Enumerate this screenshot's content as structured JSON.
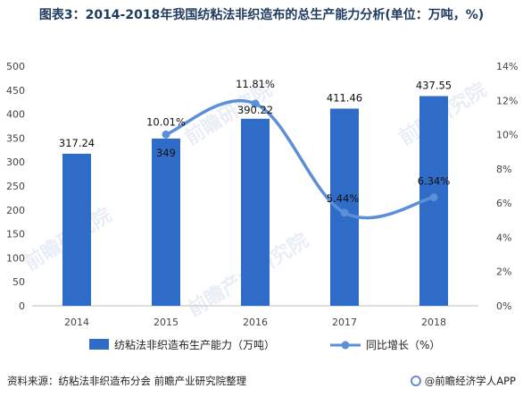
{
  "title": "图表3：2014-2018年我国纺粘法非织造布的总生产能力分析(单位：万吨，%)",
  "source": "资料来源：纺粘法非织造布分会 前瞻产业研究院整理",
  "brand": "@前瞻经济学人APP",
  "watermarks": [
    "前瞻研究院",
    "前瞻研究院",
    "前瞻产业研究院",
    "前瞻研究院"
  ],
  "chart_data": {
    "type": "bar+line",
    "categories": [
      "2014",
      "2015",
      "2016",
      "2017",
      "2018"
    ],
    "series": [
      {
        "name": "纺粘法非织造布生产能力（万吨）",
        "type": "bar",
        "axis": "left",
        "values": [
          317.24,
          349,
          390.22,
          411.46,
          437.55
        ],
        "labels": [
          "317.24",
          "349",
          "390.22",
          "411.46",
          "437.55"
        ],
        "color": "#2f6cc7"
      },
      {
        "name": "同比增长（%）",
        "type": "line",
        "axis": "right",
        "values": [
          null,
          10.01,
          11.81,
          5.44,
          6.34
        ],
        "labels": [
          "",
          "10.01%",
          "11.81%",
          "5.44%",
          "6.34%"
        ],
        "color": "#5b8fd8"
      }
    ],
    "y_left": {
      "min": 0,
      "max": 500,
      "ticks": [
        "0",
        "50",
        "100",
        "150",
        "200",
        "250",
        "300",
        "350",
        "400",
        "450",
        "500"
      ]
    },
    "y_right": {
      "min": 0,
      "max": 14,
      "ticks": [
        "0%",
        "2%",
        "4%",
        "6%",
        "8%",
        "10%",
        "12%",
        "14%"
      ]
    },
    "legend_position": "bottom",
    "grid": false
  }
}
